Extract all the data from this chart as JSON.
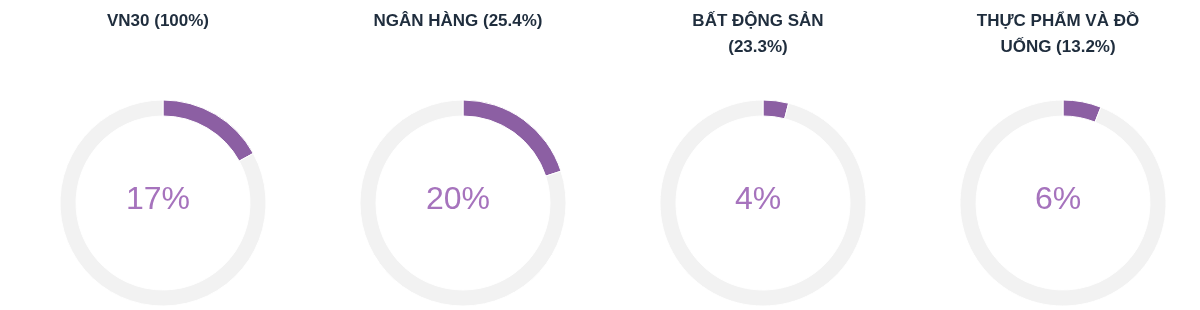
{
  "chart_data": [
    {
      "type": "donut",
      "title": "VN30 (100%)",
      "categories": [
        null,
        null
      ],
      "values": [
        17,
        83
      ],
      "colors": [
        "#8c5fa3",
        "#f2f2f2"
      ],
      "annotations": [
        "17%"
      ]
    },
    {
      "type": "donut",
      "title": "NGÂN HÀNG (25.4%)",
      "categories": [
        null,
        null
      ],
      "values": [
        20,
        80
      ],
      "colors": [
        "#8c5fa3",
        "#f2f2f2"
      ],
      "annotations": [
        "20%"
      ]
    },
    {
      "type": "donut",
      "title": "BẤT ĐỘNG SẢN (23.3%)",
      "categories": [
        null,
        null
      ],
      "values": [
        4,
        96
      ],
      "colors": [
        "#8c5fa3",
        "#f2f2f2"
      ],
      "annotations": [
        "4%"
      ]
    },
    {
      "type": "donut",
      "title": "THỰC PHẨM VÀ ĐỒ UỐNG (13.2%)",
      "categories": [
        null,
        null
      ],
      "values": [
        6,
        94
      ],
      "colors": [
        "#8c5fa3",
        "#f2f2f2"
      ],
      "annotations": [
        "6%"
      ]
    }
  ]
}
